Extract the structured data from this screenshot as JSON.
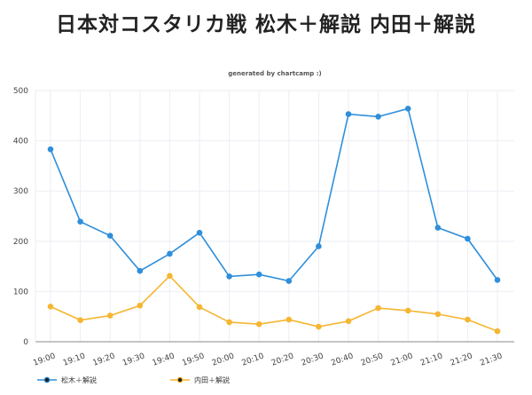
{
  "chart_data": {
    "type": "line",
    "title": "日本対コスタリカ戦 松木＋解説 内田＋解説",
    "subtitle": "generated by chartcamp :)",
    "x": [
      "19:00",
      "19:10",
      "19:20",
      "19:30",
      "19:40",
      "19:50",
      "20:00",
      "20:10",
      "20:20",
      "20:30",
      "20:40",
      "20:50",
      "21:00",
      "21:10",
      "21:20",
      "21:30"
    ],
    "yticks": [
      0,
      100,
      200,
      300,
      400,
      500
    ],
    "ylim": [
      0,
      500
    ],
    "grid": true,
    "legend": "bottom-left",
    "series": [
      {
        "name": "松木＋解説",
        "color": "#2f8fdb",
        "values": [
          383,
          239,
          211,
          141,
          175,
          217,
          130,
          134,
          121,
          190,
          453,
          448,
          464,
          227,
          205,
          123
        ]
      },
      {
        "name": "内田＋解説",
        "color": "#f5b631",
        "values": [
          70,
          43,
          52,
          72,
          131,
          69,
          39,
          35,
          44,
          30,
          41,
          67,
          62,
          55,
          44,
          21
        ]
      }
    ]
  }
}
